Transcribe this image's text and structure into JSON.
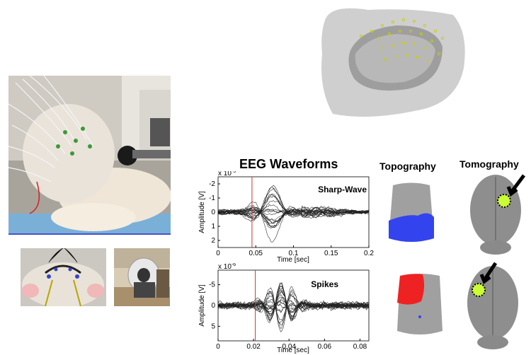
{
  "headings": {
    "eeg_waveforms": "EEG Waveforms",
    "topography": "Topography",
    "tomography": "Tomography"
  },
  "chart_data": [
    {
      "type": "line",
      "title": "Sharp-Wave",
      "xlabel": "Time [sec]",
      "ylabel": "Amplitude [V]",
      "y_exponent": "x 10",
      "y_exponent_power": "-5",
      "x_ticks": [
        "0",
        "0.05",
        "0.1",
        "0.15",
        "0.2"
      ],
      "y_ticks": [
        "-2",
        "-1",
        "0",
        "1",
        "2"
      ],
      "xlim": [
        0,
        0.2
      ],
      "ylim": [
        2.5,
        -2.5
      ],
      "y_inverted": true,
      "marker_x": 0.045,
      "marker_color": "#cc3333"
    },
    {
      "type": "line",
      "title": "Spikes",
      "xlabel": "Time [sec]",
      "ylabel": "Amplitude [V]",
      "y_exponent": "x 10",
      "y_exponent_power": "-6",
      "x_ticks": [
        "0",
        "0.02",
        "0.04",
        "0.06",
        "0.08"
      ],
      "y_ticks": [
        "-5",
        "0",
        "5"
      ],
      "xlim": [
        0,
        0.085
      ],
      "ylim": [
        8.5,
        -8.5
      ],
      "y_inverted": true,
      "marker_x": 0.021,
      "marker_color": "#cc3333"
    }
  ],
  "colors": {
    "topo_blue": "#3344ee",
    "topo_red": "#ee2222",
    "focus_green": "#ccff33",
    "arrow": "#000000"
  }
}
